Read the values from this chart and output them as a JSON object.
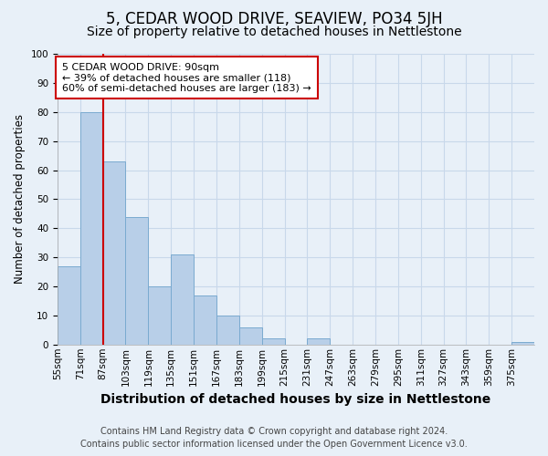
{
  "title": "5, CEDAR WOOD DRIVE, SEAVIEW, PO34 5JH",
  "subtitle": "Size of property relative to detached houses in Nettlestone",
  "xlabel": "Distribution of detached houses by size in Nettlestone",
  "ylabel": "Number of detached properties",
  "categories": [
    "55sqm",
    "71sqm",
    "87sqm",
    "103sqm",
    "119sqm",
    "135sqm",
    "151sqm",
    "167sqm",
    "183sqm",
    "199sqm",
    "215sqm",
    "231sqm",
    "247sqm",
    "263sqm",
    "279sqm",
    "295sqm",
    "311sqm",
    "327sqm",
    "343sqm",
    "359sqm",
    "375sqm"
  ],
  "bar_heights": [
    27,
    80,
    63,
    44,
    20,
    31,
    17,
    10,
    6,
    2,
    0,
    2,
    0,
    0,
    0,
    0,
    0,
    0,
    0,
    0,
    1
  ],
  "bar_color": "#b8cfe8",
  "bar_edge_color": "#7aaad0",
  "red_line_index": 2,
  "annotation_title": "5 CEDAR WOOD DRIVE: 90sqm",
  "annotation_line1": "← 39% of detached houses are smaller (118)",
  "annotation_line2": "60% of semi-detached houses are larger (183) →",
  "annotation_box_color": "#ffffff",
  "annotation_box_edge": "#cc0000",
  "red_line_color": "#cc0000",
  "ylim": [
    0,
    100
  ],
  "yticks": [
    0,
    10,
    20,
    30,
    40,
    50,
    60,
    70,
    80,
    90,
    100
  ],
  "grid_color": "#c8d8ea",
  "background_color": "#e8f0f8",
  "footer_line1": "Contains HM Land Registry data © Crown copyright and database right 2024.",
  "footer_line2": "Contains public sector information licensed under the Open Government Licence v3.0.",
  "title_fontsize": 12,
  "subtitle_fontsize": 10,
  "xlabel_fontsize": 10,
  "ylabel_fontsize": 8.5,
  "tick_fontsize": 7.5,
  "annotation_fontsize": 8,
  "footer_fontsize": 7
}
